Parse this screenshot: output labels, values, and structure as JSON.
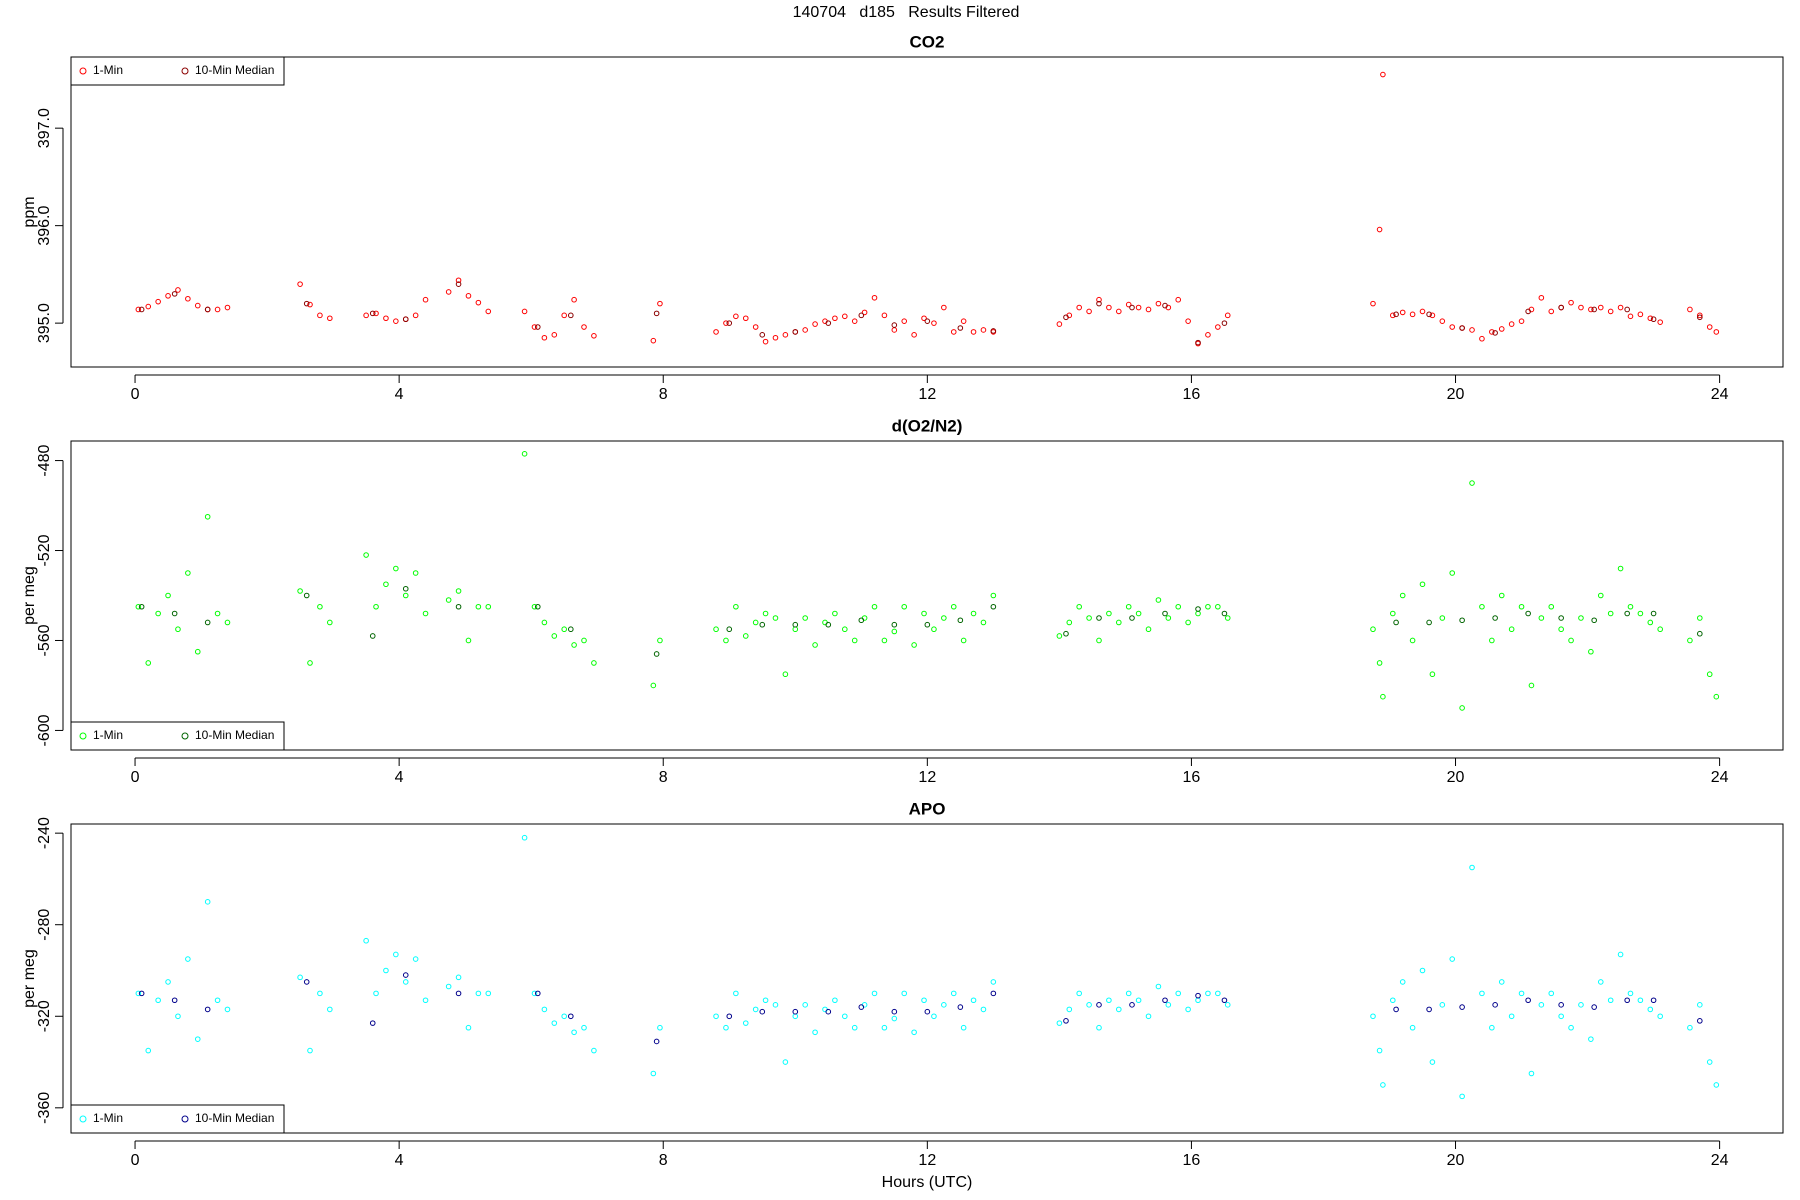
{
  "title": "140704   d185   Results Filtered",
  "chart_data": [
    {
      "type": "scatter",
      "title": "CO2",
      "ylabel": "ppm",
      "legend": "top-left",
      "xlim": [
        -0.97,
        24.96
      ],
      "xticks": [
        0,
        4,
        8,
        12,
        16,
        20,
        24
      ],
      "ylim": [
        394.55,
        397.73
      ],
      "yticks": [
        {
          "value": 395,
          "label": "395.0"
        },
        {
          "value": 396,
          "label": "396.0"
        },
        {
          "value": 397,
          "label": "397.0"
        }
      ],
      "series": [
        {
          "name": "1-Min",
          "color": "#ff0000",
          "x": [
            0.05,
            0.2,
            0.35,
            0.5,
            0.65,
            0.8,
            0.95,
            1.1,
            1.25,
            1.4,
            2.5,
            2.65,
            2.8,
            2.95,
            3.5,
            3.65,
            3.8,
            3.95,
            4.1,
            4.25,
            4.4,
            4.75,
            4.9,
            5.05,
            5.2,
            5.35,
            5.9,
            6.05,
            6.2,
            6.35,
            6.5,
            6.65,
            6.8,
            6.95,
            7.85,
            7.95,
            8.8,
            8.95,
            9.1,
            9.25,
            9.4,
            9.55,
            9.7,
            9.85,
            10.0,
            10.15,
            10.3,
            10.45,
            10.6,
            10.75,
            10.9,
            11.05,
            11.2,
            11.35,
            11.5,
            11.65,
            11.8,
            11.95,
            12.1,
            12.25,
            12.4,
            12.55,
            12.7,
            12.85,
            13.0,
            14.0,
            14.15,
            14.3,
            14.45,
            14.6,
            14.75,
            14.9,
            15.05,
            15.2,
            15.35,
            15.5,
            15.65,
            15.8,
            15.95,
            16.1,
            16.25,
            16.4,
            16.55,
            18.75,
            18.85,
            18.9,
            19.05,
            19.2,
            19.35,
            19.5,
            19.65,
            19.8,
            19.95,
            20.1,
            20.25,
            20.4,
            20.55,
            20.7,
            20.85,
            21.0,
            21.15,
            21.3,
            21.45,
            21.6,
            21.75,
            21.9,
            22.05,
            22.2,
            22.35,
            22.5,
            22.65,
            22.8,
            22.95,
            23.1,
            23.55,
            23.7,
            23.85,
            23.95
          ],
          "values": [
            395.14,
            395.17,
            395.22,
            395.28,
            395.34,
            395.25,
            395.18,
            395.14,
            395.14,
            395.16,
            395.4,
            395.19,
            395.08,
            395.05,
            395.08,
            395.1,
            395.05,
            395.02,
            395.04,
            395.08,
            395.24,
            395.32,
            395.44,
            395.28,
            395.21,
            395.12,
            395.12,
            394.96,
            394.85,
            394.88,
            395.08,
            395.24,
            394.96,
            394.87,
            394.82,
            395.2,
            394.91,
            395.0,
            395.07,
            395.05,
            394.96,
            394.81,
            394.85,
            394.88,
            394.91,
            394.93,
            394.99,
            395.02,
            395.05,
            395.07,
            395.02,
            395.11,
            395.26,
            395.08,
            394.93,
            395.02,
            394.88,
            395.05,
            395.0,
            395.16,
            394.91,
            395.02,
            394.91,
            394.93,
            394.91,
            394.99,
            395.08,
            395.16,
            395.12,
            395.24,
            395.16,
            395.12,
            395.19,
            395.16,
            395.14,
            395.2,
            395.16,
            395.24,
            395.02,
            394.79,
            394.88,
            394.96,
            395.08,
            395.2,
            395.96,
            397.55,
            395.08,
            395.11,
            395.09,
            395.12,
            395.08,
            395.02,
            394.96,
            394.95,
            394.93,
            394.84,
            394.91,
            394.94,
            394.99,
            395.02,
            395.14,
            395.26,
            395.12,
            395.16,
            395.21,
            395.16,
            395.14,
            395.16,
            395.12,
            395.16,
            395.07,
            395.09,
            395.05,
            395.01,
            395.14,
            395.08,
            394.96,
            394.91
          ]
        },
        {
          "name": "10-Min Median",
          "color": "#8b0000",
          "x": [
            0.1,
            0.6,
            1.1,
            2.6,
            3.6,
            4.1,
            4.9,
            6.1,
            6.6,
            7.9,
            9.0,
            9.5,
            10.0,
            10.5,
            11.0,
            11.5,
            12.0,
            12.5,
            13.0,
            14.1,
            14.6,
            15.1,
            15.6,
            16.1,
            16.5,
            19.1,
            19.6,
            20.1,
            20.6,
            21.1,
            21.6,
            22.1,
            22.6,
            23.0,
            23.7
          ],
          "values": [
            395.14,
            395.3,
            395.14,
            395.2,
            395.1,
            395.04,
            395.4,
            394.96,
            395.08,
            395.1,
            395.0,
            394.88,
            394.91,
            395.0,
            395.08,
            394.98,
            395.02,
            394.95,
            394.92,
            395.06,
            395.2,
            395.16,
            395.18,
            394.8,
            395.0,
            395.09,
            395.09,
            394.95,
            394.9,
            395.12,
            395.16,
            395.14,
            395.14,
            395.04,
            395.06
          ]
        }
      ]
    },
    {
      "type": "scatter",
      "title": "d(O2/N2)",
      "ylabel": "per meg",
      "legend": "bottom-left",
      "xlim": [
        -0.97,
        24.96
      ],
      "xticks": [
        0,
        4,
        8,
        12,
        16,
        20,
        24
      ],
      "ylim": [
        -608.7,
        -471.3
      ],
      "yticks": [
        -600,
        -560,
        -520,
        -480
      ],
      "series": [
        {
          "name": "1-Min",
          "color": "#00ff00",
          "x": [
            0.05,
            0.2,
            0.35,
            0.5,
            0.65,
            0.8,
            0.95,
            1.1,
            1.25,
            1.4,
            2.5,
            2.65,
            2.8,
            2.95,
            3.5,
            3.65,
            3.8,
            3.95,
            4.1,
            4.25,
            4.4,
            4.75,
            4.9,
            5.05,
            5.2,
            5.35,
            5.9,
            6.05,
            6.2,
            6.35,
            6.5,
            6.65,
            6.8,
            6.95,
            7.85,
            7.95,
            8.8,
            8.95,
            9.1,
            9.25,
            9.4,
            9.55,
            9.7,
            9.85,
            10.0,
            10.15,
            10.3,
            10.45,
            10.6,
            10.75,
            10.9,
            11.05,
            11.2,
            11.35,
            11.5,
            11.65,
            11.8,
            11.95,
            12.1,
            12.25,
            12.4,
            12.55,
            12.7,
            12.85,
            13.0,
            14.0,
            14.15,
            14.3,
            14.45,
            14.6,
            14.75,
            14.9,
            15.05,
            15.2,
            15.35,
            15.5,
            15.65,
            15.8,
            15.95,
            16.1,
            16.25,
            16.4,
            16.55,
            18.75,
            18.85,
            18.9,
            19.05,
            19.2,
            19.35,
            19.5,
            19.65,
            19.8,
            19.95,
            20.1,
            20.25,
            20.4,
            20.55,
            20.7,
            20.85,
            21.0,
            21.15,
            21.3,
            21.45,
            21.6,
            21.75,
            21.9,
            22.05,
            22.2,
            22.35,
            22.5,
            22.65,
            22.8,
            22.95,
            23.1,
            23.55,
            23.7,
            23.85,
            23.95
          ],
          "values": [
            -545,
            -570,
            -548,
            -540,
            -555,
            -530,
            -565,
            -505,
            -548,
            -552,
            -538,
            -570,
            -545,
            -552,
            -522,
            -545,
            -535,
            -528,
            -540,
            -530,
            -548,
            -542,
            -538,
            -560,
            -545,
            -545,
            -477,
            -545,
            -552,
            -558,
            -555,
            -562,
            -560,
            -570,
            -580,
            -560,
            -555,
            -560,
            -545,
            -558,
            -552,
            -548,
            -550,
            -575,
            -555,
            -550,
            -562,
            -552,
            -548,
            -555,
            -560,
            -550,
            -545,
            -560,
            -556,
            -545,
            -562,
            -548,
            -555,
            -550,
            -545,
            -560,
            -548,
            -552,
            -540,
            -558,
            -552,
            -545,
            -550,
            -560,
            -548,
            -552,
            -545,
            -548,
            -555,
            -542,
            -550,
            -545,
            -552,
            -548,
            -545,
            -545,
            -550,
            -555,
            -570,
            -585,
            -548,
            -540,
            -560,
            -535,
            -575,
            -550,
            -530,
            -590,
            -490,
            -545,
            -560,
            -540,
            -555,
            -545,
            -580,
            -550,
            -545,
            -555,
            -560,
            -550,
            -565,
            -540,
            -548,
            -528,
            -545,
            -548,
            -552,
            -555,
            -560,
            -550,
            -575,
            -585
          ]
        },
        {
          "name": "10-Min Median",
          "color": "#006400",
          "x": [
            0.1,
            0.6,
            1.1,
            2.6,
            3.6,
            4.1,
            4.9,
            6.1,
            6.6,
            7.9,
            9.0,
            9.5,
            10.0,
            10.5,
            11.0,
            11.5,
            12.0,
            12.5,
            13.0,
            14.1,
            14.6,
            15.1,
            15.6,
            16.1,
            16.5,
            19.1,
            19.6,
            20.1,
            20.6,
            21.1,
            21.6,
            22.1,
            22.6,
            23.0,
            23.7
          ],
          "values": [
            -545,
            -548,
            -552,
            -540,
            -558,
            -537,
            -545,
            -545,
            -555,
            -566,
            -555,
            -553,
            -553,
            -553,
            -551,
            -553,
            -553,
            -551,
            -545,
            -557,
            -550,
            -550,
            -548,
            -546,
            -548,
            -552,
            -552,
            -551,
            -550,
            -548,
            -550,
            -551,
            -548,
            -548,
            -557
          ]
        }
      ]
    },
    {
      "type": "scatter",
      "title": "APO",
      "ylabel": "per meg",
      "xlabel": "Hours (UTC)",
      "legend": "bottom-left",
      "xlim": [
        -0.97,
        24.96
      ],
      "xticks": [
        0,
        4,
        8,
        12,
        16,
        20,
        24
      ],
      "ylim": [
        -371,
        -236
      ],
      "yticks": [
        -360,
        -320,
        -280,
        -240
      ],
      "series": [
        {
          "name": "1-Min",
          "color": "#00ffff",
          "x": [
            0.05,
            0.2,
            0.35,
            0.5,
            0.65,
            0.8,
            0.95,
            1.1,
            1.25,
            1.4,
            2.5,
            2.65,
            2.8,
            2.95,
            3.5,
            3.65,
            3.8,
            3.95,
            4.1,
            4.25,
            4.4,
            4.75,
            4.9,
            5.05,
            5.2,
            5.35,
            5.9,
            6.05,
            6.2,
            6.35,
            6.5,
            6.65,
            6.8,
            6.95,
            7.85,
            7.95,
            8.8,
            8.95,
            9.1,
            9.25,
            9.4,
            9.55,
            9.7,
            9.85,
            10.0,
            10.15,
            10.3,
            10.45,
            10.6,
            10.75,
            10.9,
            11.05,
            11.2,
            11.35,
            11.5,
            11.65,
            11.8,
            11.95,
            12.1,
            12.25,
            12.4,
            12.55,
            12.7,
            12.85,
            13.0,
            14.0,
            14.15,
            14.3,
            14.45,
            14.6,
            14.75,
            14.9,
            15.05,
            15.2,
            15.35,
            15.5,
            15.65,
            15.8,
            15.95,
            16.1,
            16.25,
            16.4,
            16.55,
            18.75,
            18.85,
            18.9,
            19.05,
            19.2,
            19.35,
            19.5,
            19.65,
            19.8,
            19.95,
            20.1,
            20.25,
            20.4,
            20.55,
            20.7,
            20.85,
            21.0,
            21.15,
            21.3,
            21.45,
            21.6,
            21.75,
            21.9,
            22.05,
            22.2,
            22.35,
            22.5,
            22.65,
            22.8,
            22.95,
            23.1,
            23.55,
            23.7,
            23.85,
            23.95
          ],
          "values": [
            -310,
            -335,
            -313,
            -305,
            -320,
            -295,
            -330,
            -270,
            -313,
            -317,
            -303,
            -335,
            -310,
            -317,
            -287,
            -310,
            -300,
            -293,
            -305,
            -295,
            -313,
            -307,
            -303,
            -325,
            -310,
            -310,
            -242,
            -310,
            -317,
            -323,
            -320,
            -327,
            -325,
            -335,
            -345,
            -325,
            -320,
            -325,
            -310,
            -323,
            -317,
            -313,
            -315,
            -340,
            -320,
            -315,
            -327,
            -317,
            -313,
            -320,
            -325,
            -315,
            -310,
            -325,
            -321,
            -310,
            -327,
            -313,
            -320,
            -315,
            -310,
            -325,
            -313,
            -317,
            -305,
            -323,
            -317,
            -310,
            -315,
            -325,
            -313,
            -317,
            -310,
            -313,
            -320,
            -307,
            -315,
            -310,
            -317,
            -313,
            -310,
            -310,
            -315,
            -320,
            -335,
            -350,
            -313,
            -305,
            -325,
            -300,
            -340,
            -315,
            -295,
            -355,
            -255,
            -310,
            -325,
            -305,
            -320,
            -310,
            -345,
            -315,
            -310,
            -320,
            -325,
            -315,
            -330,
            -305,
            -313,
            -293,
            -310,
            -313,
            -317,
            -320,
            -325,
            -315,
            -340,
            -350
          ]
        },
        {
          "name": "10-Min Median",
          "color": "#00008b",
          "x": [
            0.1,
            0.6,
            1.1,
            2.6,
            3.6,
            4.1,
            4.9,
            6.1,
            6.6,
            7.9,
            9.0,
            9.5,
            10.0,
            10.5,
            11.0,
            11.5,
            12.0,
            12.5,
            13.0,
            14.1,
            14.6,
            15.1,
            15.6,
            16.1,
            16.5,
            19.1,
            19.6,
            20.1,
            20.6,
            21.1,
            21.6,
            22.1,
            22.6,
            23.0,
            23.7
          ],
          "values": [
            -310,
            -313,
            -317,
            -305,
            -323,
            -302,
            -310,
            -310,
            -320,
            -331,
            -320,
            -318,
            -318,
            -318,
            -316,
            -318,
            -318,
            -316,
            -310,
            -322,
            -315,
            -315,
            -313,
            -311,
            -313,
            -317,
            -317,
            -316,
            -315,
            -313,
            -315,
            -316,
            -313,
            -313,
            -322
          ]
        }
      ]
    }
  ]
}
